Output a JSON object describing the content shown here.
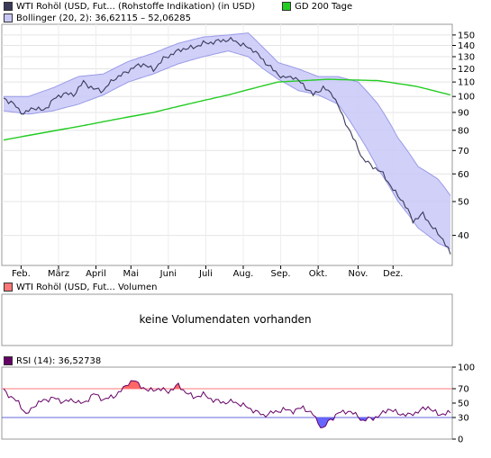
{
  "legend": {
    "main_series": "WTI Rohöl (USD, Fut... (Rohstoffe Indikation) (in USD)",
    "ma": "GD 200 Tage",
    "bollinger": "Bollinger (20, 2): 36,62115 – 52,06285",
    "volume": "WTI Rohöl (USD, Fut... Volumen",
    "rsi": "RSI (14): 36,52738"
  },
  "no_volume_text": "keine Volumendaten vorhanden",
  "colors": {
    "price": "#3a3a5a",
    "ma": "#22cc22",
    "band": "#c8c8f8",
    "band_edge": "#9a9ae8",
    "rsi": "#660066",
    "rsi_over": "#ff6666",
    "rsi_under": "#6666ff",
    "level70": "#ff7777",
    "level30": "#6666dd"
  },
  "chart_data": [
    {
      "type": "line",
      "title": "",
      "x_months": [
        "Feb.",
        "März",
        "April",
        "Mai",
        "Juni",
        "Juli",
        "Aug.",
        "Sep.",
        "Okt.",
        "Nov.",
        "Dez."
      ],
      "y_ticks": [
        40,
        50,
        60,
        70,
        80,
        90,
        100,
        110,
        120,
        130,
        140,
        150
      ],
      "y_scale": "log",
      "ylim": [
        33,
        160
      ],
      "price_anchors": [
        [
          0,
          99
        ],
        [
          4,
          95
        ],
        [
          8,
          89
        ],
        [
          12,
          93
        ],
        [
          16,
          91
        ],
        [
          20,
          98
        ],
        [
          24,
          102
        ],
        [
          28,
          101
        ],
        [
          32,
          110
        ],
        [
          36,
          105
        ],
        [
          40,
          104
        ],
        [
          44,
          112
        ],
        [
          48,
          116
        ],
        [
          52,
          121
        ],
        [
          56,
          124
        ],
        [
          60,
          119
        ],
        [
          64,
          128
        ],
        [
          68,
          133
        ],
        [
          72,
          137
        ],
        [
          76,
          138
        ],
        [
          80,
          142
        ],
        [
          84,
          143
        ],
        [
          88,
          145
        ],
        [
          92,
          145
        ],
        [
          96,
          140
        ],
        [
          100,
          136
        ],
        [
          104,
          127
        ],
        [
          108,
          119
        ],
        [
          112,
          113
        ],
        [
          116,
          114
        ],
        [
          120,
          108
        ],
        [
          124,
          101
        ],
        [
          128,
          106
        ],
        [
          132,
          101
        ],
        [
          136,
          87
        ],
        [
          140,
          76
        ],
        [
          144,
          66
        ],
        [
          148,
          63
        ],
        [
          152,
          60
        ],
        [
          156,
          54
        ],
        [
          160,
          50
        ],
        [
          164,
          44
        ],
        [
          168,
          46
        ],
        [
          172,
          42
        ],
        [
          176,
          39
        ],
        [
          179,
          35.3
        ]
      ],
      "bollinger": {
        "upper": [
          [
            0,
            100
          ],
          [
            10,
            100
          ],
          [
            20,
            106
          ],
          [
            30,
            114
          ],
          [
            40,
            116
          ],
          [
            50,
            126
          ],
          [
            60,
            133
          ],
          [
            70,
            142
          ],
          [
            80,
            148
          ],
          [
            90,
            150
          ],
          [
            98,
            152
          ],
          [
            104,
            138
          ],
          [
            110,
            125
          ],
          [
            118,
            120
          ],
          [
            126,
            114
          ],
          [
            134,
            114
          ],
          [
            142,
            110
          ],
          [
            150,
            95
          ],
          [
            158,
            76
          ],
          [
            166,
            63
          ],
          [
            174,
            58
          ],
          [
            179,
            52
          ]
        ],
        "lower": [
          [
            0,
            91
          ],
          [
            10,
            89
          ],
          [
            20,
            91
          ],
          [
            30,
            95
          ],
          [
            40,
            101
          ],
          [
            50,
            110
          ],
          [
            60,
            116
          ],
          [
            70,
            124
          ],
          [
            80,
            130
          ],
          [
            90,
            135
          ],
          [
            98,
            130
          ],
          [
            104,
            120
          ],
          [
            110,
            112
          ],
          [
            118,
            104
          ],
          [
            126,
            101
          ],
          [
            134,
            95
          ],
          [
            142,
            78
          ],
          [
            150,
            62
          ],
          [
            158,
            50
          ],
          [
            166,
            42
          ],
          [
            174,
            38
          ],
          [
            179,
            36.6
          ]
        ]
      },
      "ma200": [
        [
          0,
          75
        ],
        [
          30,
          82
        ],
        [
          60,
          90
        ],
        [
          90,
          101
        ],
        [
          110,
          110
        ],
        [
          130,
          112
        ],
        [
          150,
          111
        ],
        [
          165,
          107
        ],
        [
          179,
          101
        ]
      ],
      "legend": [
        "WTI Rohöl (USD, Fut... (Rohstoffe Indikation) (in USD)",
        "GD 200 Tage",
        "Bollinger (20, 2): 36,62115 – 52,06285"
      ]
    },
    {
      "type": "line",
      "title": "RSI (14)",
      "ylim": [
        0,
        100
      ],
      "y_ticks": [
        0,
        30,
        50,
        70,
        100
      ],
      "levels": [
        70,
        30
      ],
      "rsi_anchors": [
        [
          0,
          70
        ],
        [
          3,
          57
        ],
        [
          6,
          52
        ],
        [
          9,
          33
        ],
        [
          12,
          46
        ],
        [
          16,
          54
        ],
        [
          20,
          57
        ],
        [
          24,
          52
        ],
        [
          28,
          54
        ],
        [
          32,
          49
        ],
        [
          36,
          63
        ],
        [
          40,
          55
        ],
        [
          44,
          59
        ],
        [
          48,
          70
        ],
        [
          50,
          78
        ],
        [
          52,
          82
        ],
        [
          54,
          76
        ],
        [
          58,
          67
        ],
        [
          62,
          70
        ],
        [
          66,
          66
        ],
        [
          70,
          75
        ],
        [
          72,
          68
        ],
        [
          76,
          58
        ],
        [
          80,
          62
        ],
        [
          84,
          54
        ],
        [
          88,
          51
        ],
        [
          92,
          52
        ],
        [
          96,
          47
        ],
        [
          100,
          40
        ],
        [
          104,
          33
        ],
        [
          108,
          37
        ],
        [
          112,
          41
        ],
        [
          116,
          39
        ],
        [
          120,
          44
        ],
        [
          124,
          34
        ],
        [
          126,
          23
        ],
        [
          128,
          14
        ],
        [
          130,
          24
        ],
        [
          134,
          36
        ],
        [
          138,
          39
        ],
        [
          142,
          32
        ],
        [
          144,
          25
        ],
        [
          146,
          28
        ],
        [
          150,
          31
        ],
        [
          154,
          42
        ],
        [
          158,
          36
        ],
        [
          162,
          33
        ],
        [
          166,
          38
        ],
        [
          170,
          45
        ],
        [
          174,
          34
        ],
        [
          178,
          36.5
        ]
      ]
    }
  ]
}
